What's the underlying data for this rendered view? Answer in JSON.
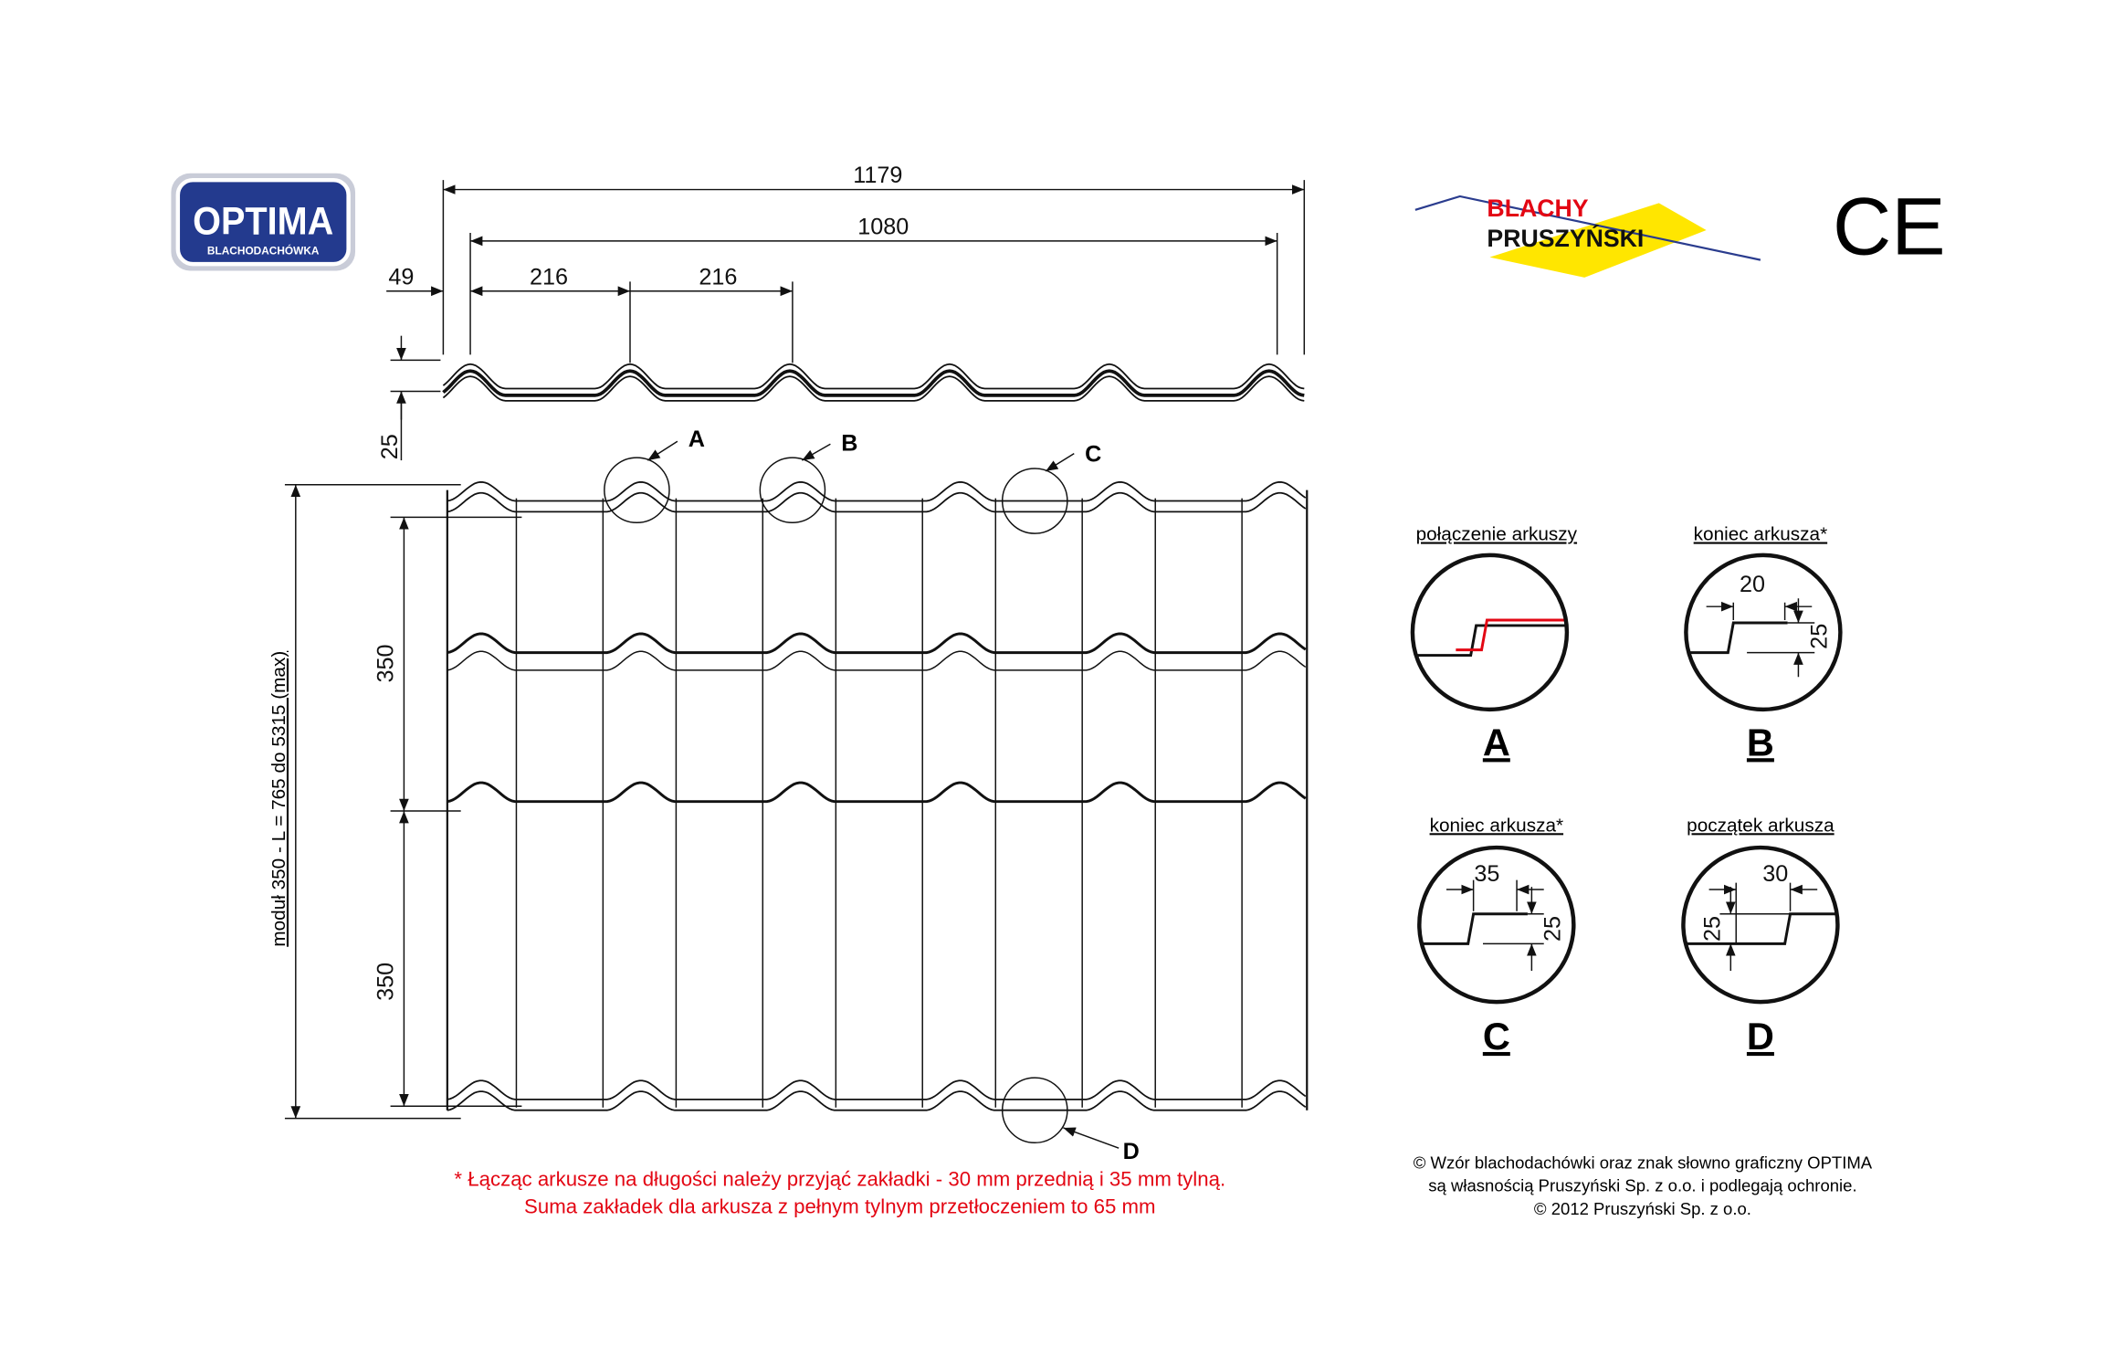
{
  "logo": {
    "name": "OPTIMA",
    "subtitle": "BLACHODACHÓWKA"
  },
  "brand": {
    "line1": "BLACHY",
    "line2": "PRUSZYŃSKI"
  },
  "certification": "CE",
  "profile_dimensions": {
    "total_width": "1179",
    "effective_width": "1080",
    "edge_offset": "49",
    "wave_pitch": [
      "216",
      "216"
    ],
    "height": "25"
  },
  "callouts": [
    "A",
    "B",
    "C",
    "D"
  ],
  "sheet_dimensions": {
    "length_label": "moduł 350 - L = 765 do 5315 (max)",
    "modules": [
      "350",
      "350"
    ]
  },
  "details": [
    {
      "title": "połączenie arkuszy",
      "letter": "A",
      "dims": []
    },
    {
      "title": "koniec arkusza*",
      "letter": "B",
      "dims": [
        "20",
        "25"
      ]
    },
    {
      "title": "koniec arkusza*",
      "letter": "C",
      "dims": [
        "35",
        "25"
      ]
    },
    {
      "title": "początek arkusza",
      "letter": "D",
      "dims": [
        "30",
        "25"
      ]
    }
  ],
  "footnote": [
    "* Łącząc arkusze na długości należy przyjąć zakładki - 30 mm przednią i 35 mm tylną.",
    "Suma zakładek dla arkusza z pełnym tylnym przetłoczeniem to 65 mm"
  ],
  "copyright": [
    "© Wzór blachodachówki oraz znak słowno graficzny OPTIMA",
    "są własnością Pruszyński Sp. z o.o.  i podlegają ochronie.",
    "© 2012 Pruszyński Sp. z o.o."
  ]
}
